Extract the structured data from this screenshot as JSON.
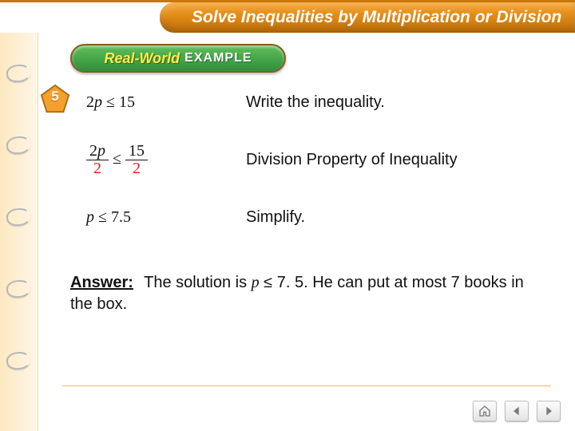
{
  "colors": {
    "accent": "#f59a1c",
    "accent_dark": "#c9760b",
    "left_rail_bg": "#fde8c2",
    "badge_green_top": "#5fbf5a",
    "badge_green_bottom": "#2f8f3a",
    "badge_border": "#8c5a1e",
    "badge_text1": "#ffec4a",
    "pentagon_fill": "#f5a02a",
    "pentagon_stroke": "#a96b10",
    "math_red": "#d22222",
    "rule": "#f2b766",
    "nav_icon": "#7a7a7a"
  },
  "header": {
    "title": "Solve Inequalities by Multiplication or Division"
  },
  "badge": {
    "line1": "Real-World",
    "line2": "EXAMPLE"
  },
  "problem_number": "5",
  "steps": [
    {
      "math_html": "2<span class='var'>p</span> <span class='le'>≤</span> 15",
      "explanation": "Write the inequality."
    },
    {
      "math_html": "<span class='frac'><span class='num'>2<span class=\"var\">p</span></span><span class='den red'>2</span></span> <span class='le'>≤</span> <span class='frac'><span class='num'>15</span><span class='den red'>2</span></span>",
      "explanation": "Division Property of Inequality"
    },
    {
      "math_html": "<span class='var'>p</span> <span class='le'>≤</span> 7.5",
      "explanation": "Simplify."
    }
  ],
  "answer": {
    "label": "Answer:",
    "text_pre": "The solution is ",
    "variable": "p",
    "relation": " ≤ 7. 5. ",
    "text_post": "He can put at most 7 books in the box."
  },
  "nav": {
    "home": "home-icon",
    "prev": "prev-icon",
    "next": "next-icon"
  }
}
